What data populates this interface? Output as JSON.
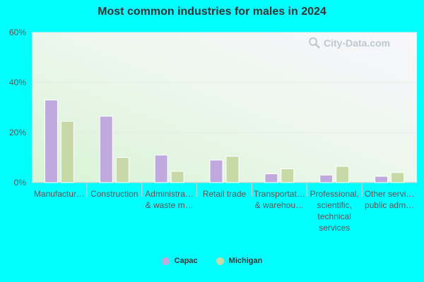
{
  "watermark": "City-Data.com",
  "colors": {
    "capac": "#c0a9dc",
    "michigan": "#c6d9a6",
    "page_bg": "#00FFFF",
    "axis": "#cccccc"
  },
  "chart_data": {
    "type": "bar",
    "title": "Most common industries for males in 2024",
    "xlabel": "",
    "ylabel": "",
    "ylim": [
      0,
      60
    ],
    "yticks": [
      "0%",
      "20%",
      "40%",
      "60%"
    ],
    "ytick_values": [
      0,
      20,
      40,
      60
    ],
    "grid": true,
    "legend_position": "bottom-center",
    "categories": [
      [
        "Manufactur…"
      ],
      [
        "Construction"
      ],
      [
        "Administra…",
        "& waste m…"
      ],
      [
        "Retail trade"
      ],
      [
        "Transportat…",
        "& warehou…"
      ],
      [
        "Professional,",
        "scientific,",
        "technical",
        "services"
      ],
      [
        "Other servi…",
        "public adm…"
      ]
    ],
    "series": [
      {
        "name": "Capac",
        "values": [
          33,
          26.5,
          11,
          9,
          3.5,
          3,
          2.5
        ]
      },
      {
        "name": "Michigan",
        "values": [
          24.5,
          10,
          4.5,
          10.5,
          5.5,
          6.5,
          4
        ]
      }
    ]
  }
}
